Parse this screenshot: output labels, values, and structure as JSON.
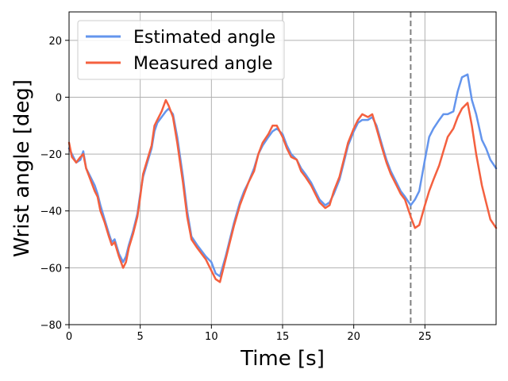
{
  "chart_data": {
    "type": "line",
    "xlabel": "Time [s]",
    "ylabel": "Wrist angle [deg]",
    "xlim": [
      0,
      30
    ],
    "ylim": [
      -80,
      30
    ],
    "xticks": [
      0,
      5,
      10,
      15,
      20,
      25
    ],
    "yticks": [
      -80,
      -60,
      -40,
      -20,
      0,
      20
    ],
    "grid": true,
    "legend_position": "top-left",
    "vline": {
      "x": 24,
      "style": "dashed",
      "color": "#808080"
    },
    "series": [
      {
        "name": "Estimated angle",
        "color": "#6495ed",
        "x": [
          0,
          0.2,
          0.5,
          0.8,
          1.0,
          1.2,
          1.5,
          1.8,
          2.0,
          2.2,
          2.5,
          2.8,
          3.0,
          3.2,
          3.5,
          3.8,
          4.0,
          4.2,
          4.5,
          4.8,
          5.0,
          5.2,
          5.5,
          5.8,
          6.0,
          6.2,
          6.5,
          6.8,
          7.0,
          7.3,
          7.6,
          8.0,
          8.3,
          8.6,
          9.0,
          9.3,
          9.6,
          10.0,
          10.3,
          10.6,
          11.0,
          11.3,
          11.6,
          12.0,
          12.3,
          12.6,
          13.0,
          13.3,
          13.6,
          14.0,
          14.3,
          14.6,
          15.0,
          15.3,
          15.6,
          16.0,
          16.3,
          16.6,
          17.0,
          17.3,
          17.6,
          18.0,
          18.3,
          18.6,
          19.0,
          19.3,
          19.6,
          20.0,
          20.3,
          20.6,
          21.0,
          21.3,
          21.6,
          22.0,
          22.3,
          22.6,
          23.0,
          23.3,
          23.6,
          24.0,
          24.3,
          24.6,
          25.0,
          25.3,
          25.6,
          26.0,
          26.3,
          26.6,
          27.0,
          27.3,
          27.6,
          28.0,
          28.3,
          28.6,
          29.0,
          29.3,
          29.6,
          30.0
        ],
        "y": [
          -18,
          -20,
          -23,
          -22,
          -19,
          -25,
          -28,
          -31,
          -34,
          -38,
          -43,
          -48,
          -51,
          -50,
          -55,
          -58,
          -56,
          -52,
          -47,
          -41,
          -34,
          -28,
          -23,
          -18,
          -12,
          -9,
          -7,
          -5,
          -4,
          -6,
          -14,
          -28,
          -40,
          -49,
          -52,
          -54,
          -56,
          -58,
          -62,
          -63,
          -56,
          -50,
          -44,
          -37,
          -33,
          -30,
          -25,
          -20,
          -17,
          -14,
          -12,
          -11,
          -13,
          -17,
          -20,
          -22,
          -25,
          -27,
          -30,
          -33,
          -36,
          -38,
          -37,
          -34,
          -29,
          -23,
          -17,
          -12,
          -9,
          -8,
          -8,
          -7,
          -10,
          -17,
          -22,
          -26,
          -30,
          -33,
          -35,
          -38,
          -36,
          -33,
          -22,
          -14,
          -11,
          -8,
          -6,
          -6,
          -5,
          2,
          7,
          8,
          -1,
          -6,
          -15,
          -18,
          -22,
          -25
        ]
      },
      {
        "name": "Measured angle",
        "color": "#f4603f",
        "x": [
          0,
          0.2,
          0.5,
          0.8,
          1.0,
          1.2,
          1.5,
          1.8,
          2.0,
          2.2,
          2.5,
          2.8,
          3.0,
          3.2,
          3.5,
          3.8,
          4.0,
          4.2,
          4.5,
          4.8,
          5.0,
          5.2,
          5.5,
          5.8,
          6.0,
          6.2,
          6.5,
          6.8,
          7.0,
          7.3,
          7.6,
          8.0,
          8.3,
          8.6,
          9.0,
          9.3,
          9.6,
          10.0,
          10.3,
          10.6,
          11.0,
          11.3,
          11.6,
          12.0,
          12.3,
          12.6,
          13.0,
          13.3,
          13.6,
          14.0,
          14.3,
          14.6,
          15.0,
          15.3,
          15.6,
          16.0,
          16.3,
          16.6,
          17.0,
          17.3,
          17.6,
          18.0,
          18.3,
          18.6,
          19.0,
          19.3,
          19.6,
          20.0,
          20.3,
          20.6,
          21.0,
          21.3,
          21.6,
          22.0,
          22.3,
          22.6,
          23.0,
          23.3,
          23.6,
          24.0,
          24.3,
          24.6,
          25.0,
          25.3,
          25.6,
          26.0,
          26.3,
          26.6,
          27.0,
          27.3,
          27.6,
          28.0,
          28.3,
          28.6,
          29.0,
          29.3,
          29.6,
          30.0
        ],
        "y": [
          -16,
          -21,
          -23,
          -21,
          -20,
          -25,
          -29,
          -33,
          -35,
          -40,
          -44,
          -49,
          -52,
          -51,
          -56,
          -60,
          -58,
          -53,
          -48,
          -42,
          -35,
          -27,
          -22,
          -17,
          -10,
          -8,
          -5,
          -1,
          -3,
          -7,
          -16,
          -30,
          -42,
          -50,
          -53,
          -55,
          -57,
          -61,
          -64,
          -65,
          -57,
          -51,
          -45,
          -38,
          -34,
          -30,
          -26,
          -20,
          -16,
          -13,
          -10,
          -10,
          -14,
          -18,
          -21,
          -22,
          -26,
          -28,
          -31,
          -34,
          -37,
          -39,
          -38,
          -33,
          -28,
          -22,
          -16,
          -11,
          -8,
          -6,
          -7,
          -6,
          -11,
          -18,
          -23,
          -27,
          -31,
          -34,
          -36,
          -42,
          -46,
          -45,
          -38,
          -33,
          -29,
          -24,
          -19,
          -14,
          -11,
          -7,
          -4,
          -2,
          -10,
          -20,
          -31,
          -37,
          -43,
          -46
        ]
      }
    ]
  }
}
